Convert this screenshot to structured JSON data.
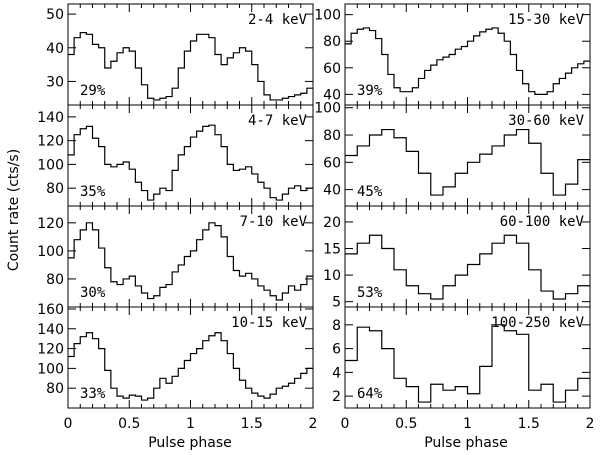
{
  "figure": {
    "ylabel": "Count rate (cts/s)",
    "xlabel_left": "Pulse phase",
    "xlabel_right": "Pulse phase"
  },
  "chart_data": [
    {
      "type": "line",
      "energy_label": "2-4 keV",
      "pulsed_fraction": "29%",
      "x": [
        0,
        0.05,
        0.1,
        0.15,
        0.2,
        0.25,
        0.3,
        0.35,
        0.4,
        0.45,
        0.5,
        0.55,
        0.6,
        0.65,
        0.7,
        0.75,
        0.8,
        0.85,
        0.9,
        0.95,
        1.0,
        1.05,
        1.1,
        1.15,
        1.2,
        1.25,
        1.3,
        1.35,
        1.4,
        1.45,
        1.5,
        1.55,
        1.6,
        1.65,
        1.7,
        1.75,
        1.8,
        1.85,
        1.9,
        1.95
      ],
      "values": [
        38,
        43,
        44.5,
        44,
        41,
        40,
        34,
        36,
        38.5,
        40,
        39,
        34,
        29,
        25,
        24.5,
        25,
        25.5,
        28,
        34,
        39,
        42,
        44,
        44,
        43,
        38,
        35,
        37,
        38.5,
        40,
        39,
        35,
        30,
        26,
        24.5,
        24.5,
        25,
        25.5,
        26,
        26.5,
        28
      ],
      "ylim": [
        23,
        53
      ],
      "yticks": [
        30,
        40,
        50
      ],
      "xticks": [
        0,
        0.5,
        1,
        1.5,
        2
      ]
    },
    {
      "type": "line",
      "energy_label": "4-7 keV",
      "pulsed_fraction": "35%",
      "x": [
        0,
        0.05,
        0.1,
        0.15,
        0.2,
        0.25,
        0.3,
        0.35,
        0.4,
        0.45,
        0.5,
        0.55,
        0.6,
        0.65,
        0.7,
        0.75,
        0.8,
        0.85,
        0.9,
        0.95,
        1.0,
        1.05,
        1.1,
        1.15,
        1.2,
        1.25,
        1.3,
        1.35,
        1.4,
        1.45,
        1.5,
        1.55,
        1.6,
        1.65,
        1.7,
        1.75,
        1.8,
        1.85,
        1.9,
        1.95
      ],
      "values": [
        108,
        125,
        130,
        132,
        122,
        115,
        100,
        98,
        100,
        102,
        96,
        85,
        78,
        70,
        75,
        80,
        78,
        95,
        108,
        115,
        123,
        128,
        132,
        133,
        125,
        115,
        100,
        95,
        96,
        98,
        92,
        85,
        80,
        72,
        70,
        75,
        80,
        82,
        78,
        80
      ],
      "ylim": [
        65,
        150
      ],
      "yticks": [
        80,
        100,
        120,
        140
      ],
      "xticks": [
        0,
        0.5,
        1,
        1.5,
        2
      ]
    },
    {
      "type": "line",
      "energy_label": "7-10 keV",
      "pulsed_fraction": "30%",
      "x": [
        0,
        0.05,
        0.1,
        0.15,
        0.2,
        0.25,
        0.3,
        0.35,
        0.4,
        0.45,
        0.5,
        0.55,
        0.6,
        0.65,
        0.7,
        0.75,
        0.8,
        0.85,
        0.9,
        0.95,
        1.0,
        1.05,
        1.1,
        1.15,
        1.2,
        1.25,
        1.3,
        1.35,
        1.4,
        1.45,
        1.5,
        1.55,
        1.6,
        1.65,
        1.7,
        1.75,
        1.8,
        1.85,
        1.9,
        1.95
      ],
      "values": [
        95,
        108,
        115,
        120,
        115,
        102,
        88,
        78,
        76,
        80,
        82,
        75,
        70,
        66,
        68,
        74,
        76,
        85,
        90,
        96,
        100,
        108,
        115,
        120,
        118,
        110,
        96,
        86,
        82,
        84,
        80,
        75,
        72,
        68,
        65,
        70,
        75,
        72,
        76,
        82
      ],
      "ylim": [
        60,
        132
      ],
      "yticks": [
        80,
        100,
        120
      ],
      "xticks": [
        0,
        0.5,
        1,
        1.5,
        2
      ]
    },
    {
      "type": "line",
      "energy_label": "10-15 keV",
      "pulsed_fraction": "33%",
      "x": [
        0,
        0.05,
        0.1,
        0.15,
        0.2,
        0.25,
        0.3,
        0.35,
        0.4,
        0.45,
        0.5,
        0.55,
        0.6,
        0.65,
        0.7,
        0.75,
        0.8,
        0.85,
        0.9,
        0.95,
        1.0,
        1.05,
        1.1,
        1.15,
        1.2,
        1.25,
        1.3,
        1.35,
        1.4,
        1.45,
        1.5,
        1.55,
        1.6,
        1.65,
        1.7,
        1.75,
        1.8,
        1.85,
        1.9,
        1.95
      ],
      "values": [
        112,
        125,
        132,
        136,
        130,
        120,
        98,
        80,
        72,
        70,
        73,
        72,
        68,
        70,
        80,
        90,
        85,
        92,
        100,
        108,
        115,
        120,
        128,
        133,
        136,
        128,
        115,
        100,
        88,
        80,
        75,
        72,
        70,
        74,
        80,
        82,
        85,
        90,
        95,
        100
      ],
      "ylim": [
        60,
        162
      ],
      "yticks": [
        80,
        100,
        120,
        140,
        160
      ],
      "xticks": [
        0,
        0.5,
        1,
        1.5,
        2
      ]
    },
    {
      "type": "line",
      "energy_label": "15-30 keV",
      "pulsed_fraction": "39%",
      "x": [
        0,
        0.05,
        0.1,
        0.15,
        0.2,
        0.25,
        0.3,
        0.35,
        0.4,
        0.45,
        0.5,
        0.55,
        0.6,
        0.65,
        0.7,
        0.75,
        0.8,
        0.85,
        0.9,
        0.95,
        1.0,
        1.05,
        1.1,
        1.15,
        1.2,
        1.25,
        1.3,
        1.35,
        1.4,
        1.45,
        1.5,
        1.55,
        1.6,
        1.65,
        1.7,
        1.75,
        1.8,
        1.85,
        1.9,
        1.95
      ],
      "values": [
        78,
        86,
        89,
        90,
        88,
        82,
        70,
        55,
        45,
        42,
        42,
        45,
        52,
        58,
        62,
        66,
        68,
        70,
        74,
        76,
        80,
        84,
        87,
        89,
        90,
        86,
        80,
        70,
        58,
        48,
        42,
        40,
        40,
        42,
        48,
        52,
        56,
        60,
        63,
        65
      ],
      "ylim": [
        32,
        108
      ],
      "yticks": [
        40,
        60,
        80,
        100
      ],
      "xticks": [
        0,
        0.5,
        1,
        1.5,
        2
      ]
    },
    {
      "type": "line",
      "energy_label": "30-60 keV",
      "pulsed_fraction": "45%",
      "x": [
        0,
        0.1,
        0.2,
        0.3,
        0.4,
        0.5,
        0.6,
        0.7,
        0.8,
        0.9,
        1.0,
        1.1,
        1.2,
        1.3,
        1.4,
        1.5,
        1.6,
        1.7,
        1.8,
        1.9
      ],
      "values": [
        65,
        72,
        80,
        84,
        78,
        68,
        52,
        36,
        42,
        52,
        60,
        66,
        72,
        80,
        84,
        74,
        52,
        36,
        44,
        62
      ],
      "ylim": [
        28,
        102
      ],
      "yticks": [
        40,
        60,
        80,
        100
      ],
      "xticks": [
        0,
        0.5,
        1,
        1.5,
        2
      ]
    },
    {
      "type": "line",
      "energy_label": "60-100 keV",
      "pulsed_fraction": "53%",
      "x": [
        0,
        0.1,
        0.2,
        0.3,
        0.4,
        0.5,
        0.6,
        0.7,
        0.8,
        0.9,
        1.0,
        1.1,
        1.2,
        1.3,
        1.4,
        1.5,
        1.6,
        1.7,
        1.8,
        1.9
      ],
      "values": [
        14,
        16,
        17.5,
        15,
        11,
        8,
        6.5,
        5.5,
        8,
        10,
        12,
        14,
        16,
        17.5,
        16,
        11,
        7,
        5.5,
        6.5,
        8
      ],
      "ylim": [
        4,
        23
      ],
      "yticks": [
        5,
        10,
        15,
        20
      ],
      "xticks": [
        0,
        0.5,
        1,
        1.5,
        2
      ]
    },
    {
      "type": "line",
      "energy_label": "100-250 keV",
      "pulsed_fraction": "64%",
      "x": [
        0,
        0.1,
        0.2,
        0.3,
        0.4,
        0.5,
        0.6,
        0.7,
        0.8,
        0.9,
        1.0,
        1.1,
        1.2,
        1.3,
        1.4,
        1.5,
        1.6,
        1.7,
        1.8,
        1.9
      ],
      "values": [
        5,
        7.8,
        7.5,
        6,
        3.5,
        2.8,
        1.5,
        3,
        2.5,
        2.8,
        2.2,
        4.5,
        8,
        7.5,
        7.2,
        2.5,
        3,
        1.5,
        2.5,
        3.5
      ],
      "ylim": [
        1,
        9.5
      ],
      "yticks": [
        2,
        4,
        6,
        8
      ],
      "xticks": [
        0,
        0.5,
        1,
        1.5,
        2
      ]
    }
  ]
}
